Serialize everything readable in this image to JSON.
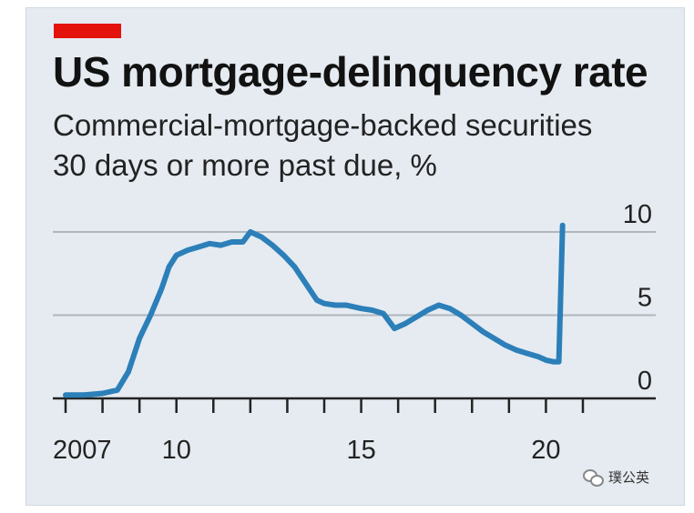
{
  "header": {
    "title": "US mortgage-delinquency rate",
    "subtitle_line1": "Commercial-mortgage-backed securities",
    "subtitle_line2": "30 days or more past due, %",
    "tag_color": "#e3120b"
  },
  "watermark": {
    "text": "璞公英",
    "icon": "wechat-icon"
  },
  "chart_data": {
    "type": "line",
    "title": "US mortgage-delinquency rate",
    "subtitle": "Commercial-mortgage-backed securities 30 days or more past due, %",
    "xlabel": "",
    "ylabel": "",
    "xlim": [
      2007.0,
      2021.0
    ],
    "ylim": [
      0,
      10
    ],
    "x_ticks": [
      2007,
      2008,
      2009,
      2010,
      2011,
      2012,
      2013,
      2014,
      2015,
      2016,
      2017,
      2018,
      2019,
      2020,
      2021
    ],
    "x_tick_labels": [
      {
        "value": 2007,
        "label": "2007"
      },
      {
        "value": 2010,
        "label": "10"
      },
      {
        "value": 2015,
        "label": "15"
      },
      {
        "value": 2020,
        "label": "20"
      }
    ],
    "y_ticks": [
      {
        "value": 0,
        "label": "0"
      },
      {
        "value": 5,
        "label": "5"
      },
      {
        "value": 10,
        "label": "10"
      }
    ],
    "grid": "horizontal",
    "line_color": "#2c7fb8",
    "series": [
      {
        "name": "",
        "x": [
          2007.0,
          2007.5,
          2008.0,
          2008.4,
          2008.7,
          2009.0,
          2009.3,
          2009.6,
          2009.8,
          2010.0,
          2010.3,
          2010.6,
          2010.9,
          2011.2,
          2011.5,
          2011.8,
          2012.0,
          2012.3,
          2012.6,
          2012.9,
          2013.2,
          2013.5,
          2013.8,
          2014.0,
          2014.3,
          2014.6,
          2015.0,
          2015.3,
          2015.6,
          2015.9,
          2016.2,
          2016.5,
          2016.8,
          2017.1,
          2017.4,
          2017.7,
          2018.0,
          2018.3,
          2018.6,
          2018.9,
          2019.2,
          2019.5,
          2019.8,
          2020.0,
          2020.2,
          2020.35,
          2020.45
        ],
        "y": [
          0.2,
          0.2,
          0.3,
          0.5,
          1.6,
          3.6,
          5.0,
          6.6,
          7.9,
          8.6,
          8.9,
          9.1,
          9.3,
          9.2,
          9.4,
          9.4,
          10.0,
          9.7,
          9.2,
          8.6,
          7.9,
          6.9,
          5.9,
          5.7,
          5.6,
          5.6,
          5.4,
          5.3,
          5.1,
          4.2,
          4.5,
          4.9,
          5.3,
          5.6,
          5.4,
          5.0,
          4.5,
          4.0,
          3.6,
          3.2,
          2.9,
          2.7,
          2.5,
          2.3,
          2.2,
          2.2,
          10.4
        ]
      }
    ]
  }
}
